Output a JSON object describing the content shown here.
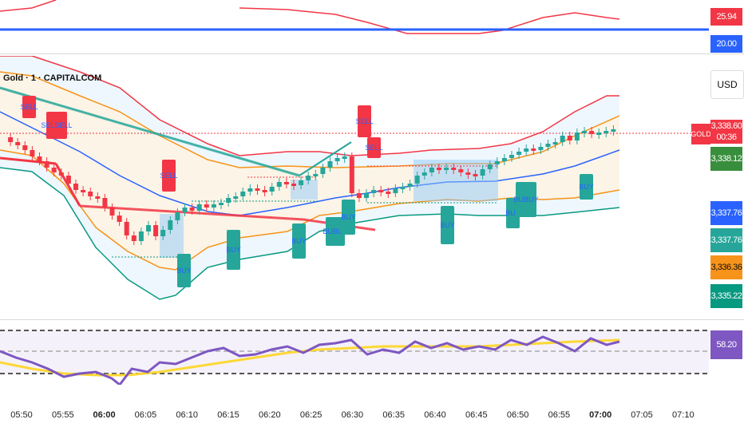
{
  "header": {
    "symbol_label": "Gold · 1 · CAPITALCOM"
  },
  "top_axis": {
    "value_red": "25.94",
    "value_blue": "20.00"
  },
  "main_axis": {
    "currency": "USD",
    "gold_label": "GOLD",
    "last_price": "3,338.60",
    "countdown": "00:36",
    "tags": [
      "3,338.12",
      "3,337.76",
      "3,337.76",
      "3,336.36",
      "3,335.22"
    ]
  },
  "rsi_axis": {
    "value": "58.20"
  },
  "time_axis": {
    "ticks": [
      "05:50",
      "05:55",
      "06:00",
      "06:05",
      "06:10",
      "06:15",
      "06:20",
      "06:25",
      "06:30",
      "06:35",
      "06:40",
      "06:45",
      "06:50",
      "06:55",
      "07:00",
      "07:05",
      "07:10"
    ],
    "bold_ticks": [
      "06:00",
      "07:00"
    ]
  },
  "signals": {
    "sell": "SELL",
    "buy": "BUY",
    "sell_double": "SELSELL",
    "buy_double": "BUBUY"
  },
  "colors": {
    "up": "#26a69a",
    "down": "#f23645",
    "accent": "#2962ff",
    "orange": "#f7931a",
    "rsi": "#7e57c2",
    "rsi_ma": "#fdd835"
  }
}
